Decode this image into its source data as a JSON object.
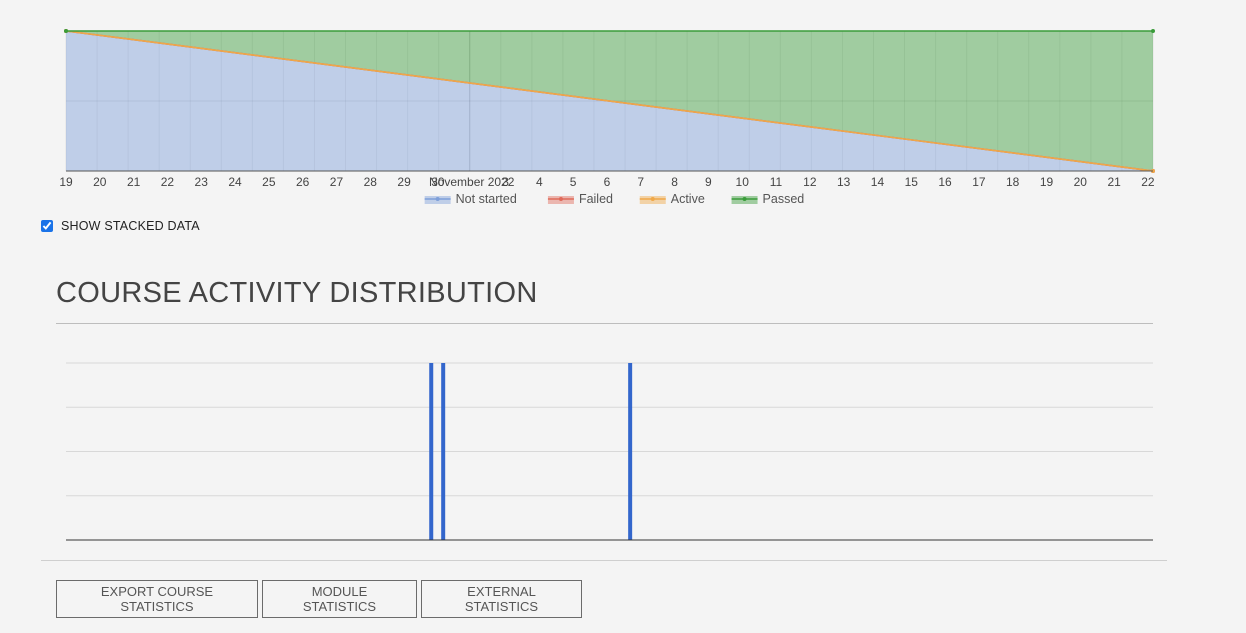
{
  "stacked_chart": {
    "chart_data": {
      "type": "area",
      "stacked": true,
      "x_tick_labels": [
        "19",
        "20",
        "21",
        "22",
        "23",
        "24",
        "25",
        "26",
        "27",
        "28",
        "29",
        "30",
        "November 2022",
        "3",
        "4",
        "5",
        "6",
        "7",
        "8",
        "9",
        "10",
        "11",
        "12",
        "13",
        "14",
        "15",
        "16",
        "17",
        "18",
        "19",
        "20",
        "21",
        "22"
      ],
      "x_range": [
        "2022-10-19",
        "2022-11-23"
      ],
      "series": [
        {
          "name": "Not started",
          "color": "#7e9fd9",
          "x": [
            "2022-10-19",
            "2022-11-23"
          ],
          "values": [
            1,
            0
          ]
        },
        {
          "name": "Failed",
          "color": "#e06a5a",
          "x": [
            "2022-10-19",
            "2022-11-23"
          ],
          "values": [
            0,
            0
          ]
        },
        {
          "name": "Active",
          "color": "#f0a848",
          "x": [
            "2022-10-19",
            "2022-11-23"
          ],
          "values": [
            0,
            0
          ]
        },
        {
          "name": "Passed",
          "color": "#3a9c3a",
          "x": [
            "2022-10-19",
            "2022-11-23"
          ],
          "values": [
            0,
            1
          ]
        }
      ],
      "grid": true,
      "legend_position": "bottom"
    }
  },
  "show_stacked": {
    "label": "SHOW STACKED DATA",
    "checked": true
  },
  "distribution": {
    "title": "COURSE ACTIVITY DISTRIBUTION",
    "chart_data": {
      "type": "bar",
      "bar_color": "#3366cc",
      "x_range": [
        0,
        100
      ],
      "bar_positions": [
        33.6,
        34.7,
        51.9
      ],
      "bar_values": [
        1,
        1,
        1
      ],
      "ylim": [
        0,
        1
      ],
      "grid": true
    }
  },
  "buttons": {
    "export": "EXPORT COURSE STATISTICS",
    "module": "MODULE STATISTICS",
    "external": "EXTERNAL STATISTICS"
  }
}
